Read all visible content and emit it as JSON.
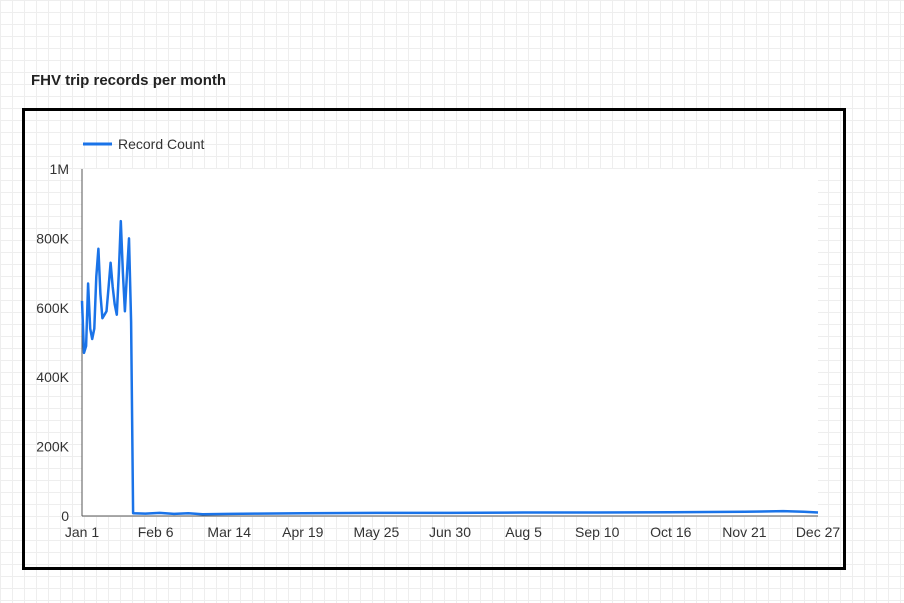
{
  "page": {
    "title": "FHV trip records per month"
  },
  "chart_data": {
    "type": "line",
    "title": "FHV trip records per month",
    "xlabel": "",
    "ylabel": "",
    "legend_position": "top-left",
    "grid": false,
    "colors": {
      "series": "#1a73e8",
      "axis": "#555555"
    },
    "x_tick_labels": [
      "Jan 1",
      "Feb 6",
      "Mar 14",
      "Apr 19",
      "May 25",
      "Jun 30",
      "Aug 5",
      "Sep 10",
      "Oct 16",
      "Nov 21",
      "Dec 27"
    ],
    "y_tick_labels": [
      "0",
      "200K",
      "400K",
      "600K",
      "800K",
      "1M"
    ],
    "ylim": [
      0,
      1000000
    ],
    "xlim": [
      "Jan 1",
      "Dec 27"
    ],
    "series": [
      {
        "name": "Record Count",
        "points": [
          [
            "Jan 1",
            620000
          ],
          [
            "Jan 2",
            470000
          ],
          [
            "Jan 3",
            490000
          ],
          [
            "Jan 4",
            670000
          ],
          [
            "Jan 5",
            540000
          ],
          [
            "Jan 6",
            510000
          ],
          [
            "Jan 7",
            540000
          ],
          [
            "Jan 8",
            690000
          ],
          [
            "Jan 9",
            770000
          ],
          [
            "Jan 10",
            640000
          ],
          [
            "Jan 11",
            570000
          ],
          [
            "Jan 12",
            580000
          ],
          [
            "Jan 13",
            590000
          ],
          [
            "Jan 14",
            660000
          ],
          [
            "Jan 15",
            730000
          ],
          [
            "Jan 16",
            660000
          ],
          [
            "Jan 17",
            610000
          ],
          [
            "Jan 18",
            580000
          ],
          [
            "Jan 19",
            700000
          ],
          [
            "Jan 20",
            850000
          ],
          [
            "Jan 21",
            700000
          ],
          [
            "Jan 22",
            590000
          ],
          [
            "Jan 23",
            700000
          ],
          [
            "Jan 24",
            800000
          ],
          [
            "Jan 25",
            560000
          ],
          [
            "Jan 26",
            8000
          ],
          [
            "Feb 1",
            7000
          ],
          [
            "Feb 8",
            9000
          ],
          [
            "Feb 15",
            6000
          ],
          [
            "Feb 22",
            8000
          ],
          [
            "Mar 1",
            5000
          ],
          [
            "Mar 14",
            6000
          ],
          [
            "Mar 28",
            7000
          ],
          [
            "Apr 19",
            8000
          ],
          [
            "May 25",
            9000
          ],
          [
            "Jun 30",
            9000
          ],
          [
            "Aug 5",
            10000
          ],
          [
            "Sep 10",
            10000
          ],
          [
            "Oct 16",
            11000
          ],
          [
            "Nov 21",
            12000
          ],
          [
            "Dec 10",
            14000
          ],
          [
            "Dec 20",
            12000
          ],
          [
            "Dec 27",
            10000
          ]
        ]
      }
    ]
  }
}
